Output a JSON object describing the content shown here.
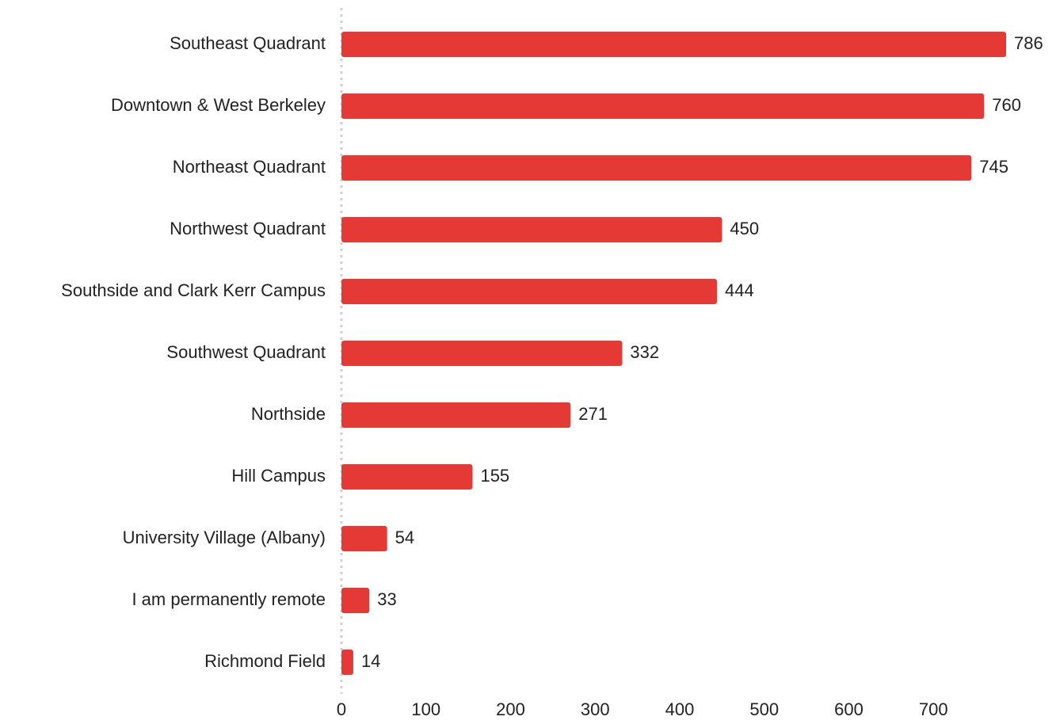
{
  "chart_data": {
    "type": "bar",
    "orientation": "horizontal",
    "categories": [
      "Southeast Quadrant",
      "Downtown & West Berkeley",
      "Northeast Quadrant",
      "Northwest Quadrant",
      "Southside and Clark Kerr Campus",
      "Southwest Quadrant",
      "Northside",
      "Hill Campus",
      "University Village (Albany)",
      "I am permanently remote",
      "Richmond Field"
    ],
    "values": [
      786,
      760,
      745,
      450,
      444,
      332,
      271,
      155,
      54,
      33,
      14
    ],
    "color": "#e53935",
    "xlim": [
      0,
      800
    ],
    "xticks": [
      0,
      100,
      200,
      300,
      400,
      500,
      600,
      700
    ],
    "grid": false
  }
}
